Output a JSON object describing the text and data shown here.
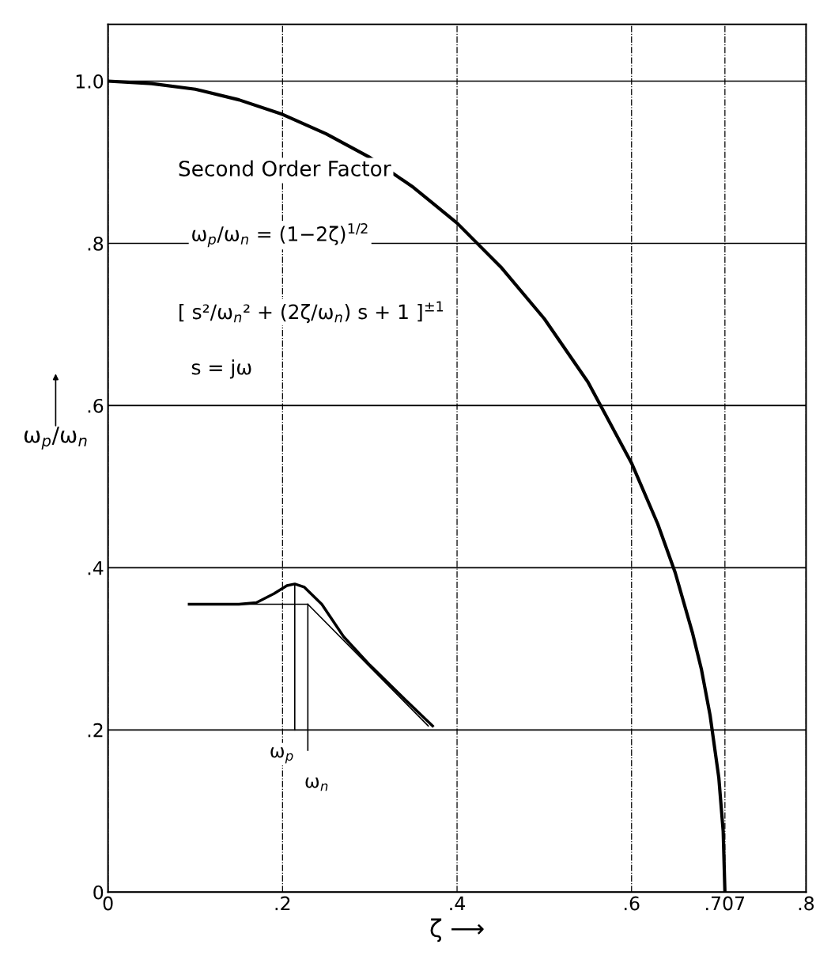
{
  "chart_data": {
    "type": "line",
    "xlabel": "ζ ⟶",
    "ylabel": "ω$_{p}$/ω$_{n}$",
    "x": [
      0,
      0.05,
      0.1,
      0.15,
      0.2,
      0.25,
      0.3,
      0.35,
      0.4,
      0.45,
      0.5,
      0.55,
      0.6,
      0.63,
      0.65,
      0.67,
      0.68,
      0.69,
      0.7,
      0.705,
      0.707
    ],
    "series": [
      {
        "color": "#000000",
        "values": [
          1.0,
          0.997,
          0.99,
          0.977,
          0.959,
          0.935,
          0.906,
          0.869,
          0.825,
          0.771,
          0.707,
          0.629,
          0.529,
          0.454,
          0.394,
          0.319,
          0.275,
          0.218,
          0.141,
          0.075,
          0.0
        ]
      },
      {
        "color": "#000000",
        "x": [
          0.093,
          0.15,
          0.17,
          0.19,
          0.205,
          0.214,
          0.225,
          0.245,
          0.27,
          0.3,
          0.34,
          0.372
        ],
        "values": [
          0.355,
          0.355,
          0.357,
          0.368,
          0.378,
          0.38,
          0.376,
          0.355,
          0.315,
          0.28,
          0.238,
          0.205
        ]
      },
      {
        "color": "#000000",
        "x": [
          0.093,
          0.229,
          0.367
        ],
        "values": [
          0.355,
          0.355,
          0.205
        ]
      },
      {
        "color": "#000000",
        "x": [
          0.214,
          0.214
        ],
        "values": [
          0.38,
          0.2
        ]
      },
      {
        "color": "#000000",
        "x": [
          0.229,
          0.229
        ],
        "values": [
          0.355,
          0.175
        ]
      }
    ],
    "xlim": [
      0,
      0.8
    ],
    "ylim": [
      0,
      1.07
    ],
    "xticks": [
      0,
      {
        "value": 0.2,
        "label": ".2"
      },
      {
        "value": 0.4,
        "label": ".4"
      },
      {
        "value": 0.6,
        "label": ".6"
      },
      {
        "value": 0.707,
        "label": ".707"
      },
      {
        "value": 0.8,
        "label": ".8"
      }
    ],
    "yticks": [
      0,
      {
        "value": 0.2,
        "label": ".2"
      },
      {
        "value": 0.4,
        "label": ".4"
      },
      {
        "value": 0.6,
        "label": ".6"
      },
      {
        "value": 0.8,
        "label": ".8"
      },
      {
        "value": 1.0,
        "label": "1.0"
      }
    ],
    "grid": true,
    "marker": "none",
    "line_style": "solid",
    "annotations": [
      "Second Order Factor",
      "ω$_{p}$/ω$_{n}$ = (1−2ζ)$^{1/2}$",
      "[ s²/ω$_{n}$² + (2ζ/ω$_{n}$) s + 1 ]$^{±1}$",
      "s = jω",
      "ω$_{p}$",
      "ω$_{n}$"
    ]
  }
}
